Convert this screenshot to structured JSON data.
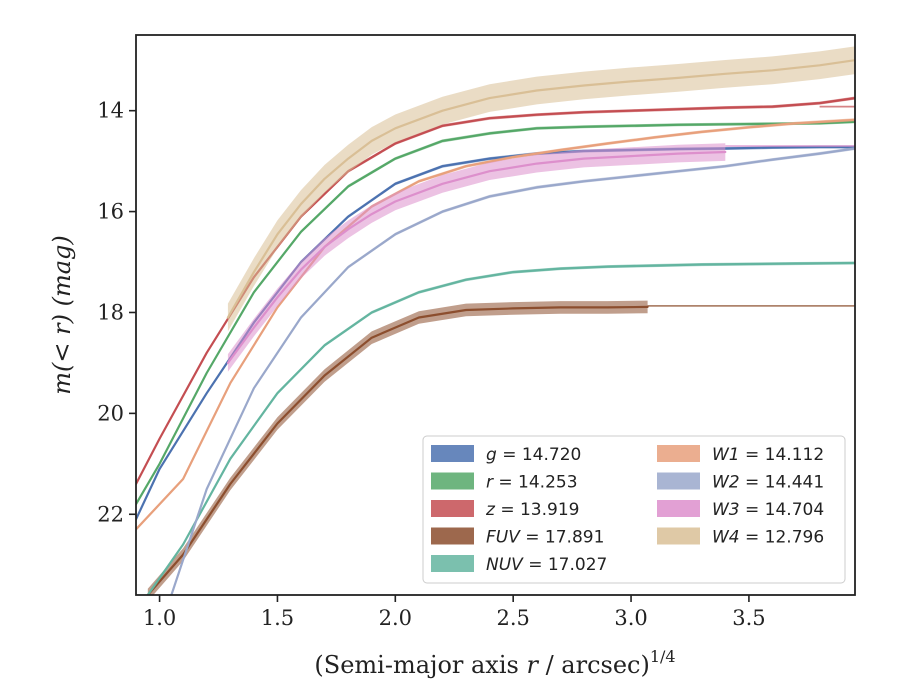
{
  "chart_data": {
    "type": "line",
    "title": "",
    "xlabel_main": "(Semi-major axis ",
    "xlabel_var": "r",
    "xlabel_unit": " / arcsec)",
    "xlabel_exp": "1/4",
    "ylabel": "m(< r) (mag)",
    "xlim": [
      0.9,
      3.95
    ],
    "ylim": [
      23.6,
      12.5
    ],
    "y_inverted": true,
    "xticks": [
      1.0,
      1.5,
      2.0,
      2.5,
      3.0,
      3.5
    ],
    "xtick_labels": [
      "1.0",
      "1.5",
      "2.0",
      "2.5",
      "3.0",
      "3.5"
    ],
    "yticks": [
      14,
      16,
      18,
      20,
      22
    ],
    "ytick_labels": [
      "14",
      "16",
      "18",
      "20",
      "22"
    ],
    "grid": false,
    "legend": "lower-right, two columns",
    "series": [
      {
        "name": "g = 14.720",
        "band": "g",
        "total_mag": "14.720",
        "color": "#4c72b0",
        "band_width": 0.06,
        "x": [
          0.9,
          1.0,
          1.2,
          1.4,
          1.6,
          1.8,
          2.0,
          2.2,
          2.4,
          2.6,
          2.8,
          3.0,
          3.2,
          3.4,
          3.6,
          3.8,
          3.95
        ],
        "y": [
          22.1,
          21.1,
          19.6,
          18.2,
          17.0,
          16.1,
          15.45,
          15.1,
          14.95,
          14.85,
          14.8,
          14.78,
          14.76,
          14.75,
          14.73,
          14.72,
          14.72
        ],
        "extension": null
      },
      {
        "name": "r = 14.253",
        "band": "r",
        "total_mag": "14.253",
        "color": "#55a868",
        "band_width": 0.06,
        "x": [
          0.9,
          1.0,
          1.2,
          1.4,
          1.6,
          1.8,
          2.0,
          2.2,
          2.4,
          2.6,
          2.8,
          3.0,
          3.2,
          3.4,
          3.6,
          3.8,
          3.95
        ],
        "y": [
          21.8,
          21.0,
          19.2,
          17.6,
          16.4,
          15.5,
          14.95,
          14.6,
          14.45,
          14.35,
          14.32,
          14.3,
          14.28,
          14.27,
          14.26,
          14.25,
          14.22
        ],
        "extension": null
      },
      {
        "name": "z = 13.919",
        "band": "z",
        "total_mag": "13.919",
        "color": "#c44e52",
        "band_width": 0.06,
        "x": [
          0.9,
          1.0,
          1.2,
          1.4,
          1.6,
          1.8,
          2.0,
          2.2,
          2.4,
          2.6,
          2.8,
          3.0,
          3.2,
          3.4,
          3.6,
          3.8,
          3.95
        ],
        "y": [
          21.4,
          20.5,
          18.8,
          17.3,
          16.1,
          15.2,
          14.65,
          14.3,
          14.15,
          14.08,
          14.03,
          14.0,
          13.97,
          13.94,
          13.92,
          13.85,
          13.75
        ],
        "extension": {
          "x": [
            3.8,
            3.95
          ],
          "y": [
            13.92,
            13.92
          ]
        }
      },
      {
        "name": "FUV = 17.891",
        "band": "FUV",
        "total_mag": "17.891",
        "color": "#8c4e2e",
        "band_width": 0.25,
        "x": [
          0.95,
          1.1,
          1.3,
          1.5,
          1.7,
          1.9,
          2.1,
          2.3,
          2.5,
          2.7,
          2.9,
          3.07
        ],
        "y": [
          23.6,
          22.8,
          21.4,
          20.2,
          19.25,
          18.5,
          18.1,
          17.95,
          17.92,
          17.9,
          17.9,
          17.89
        ],
        "extension": {
          "x": [
            3.07,
            3.95
          ],
          "y": [
            17.87,
            17.87
          ]
        }
      },
      {
        "name": "NUV = 17.027",
        "band": "NUV",
        "total_mag": "17.027",
        "color": "#64b5a0",
        "band_width": 0.06,
        "x": [
          0.95,
          1.1,
          1.3,
          1.5,
          1.7,
          1.9,
          2.1,
          2.3,
          2.5,
          2.7,
          2.9,
          3.1,
          3.3,
          3.5,
          3.7,
          3.95
        ],
        "y": [
          23.6,
          22.6,
          20.9,
          19.6,
          18.65,
          18.0,
          17.6,
          17.35,
          17.2,
          17.13,
          17.09,
          17.07,
          17.05,
          17.04,
          17.03,
          17.02
        ],
        "extension": null
      },
      {
        "name": "W1 = 14.112",
        "band": "W1",
        "total_mag": "14.112",
        "color": "#e8a07c",
        "band_width": 0.06,
        "x": [
          0.9,
          1.1,
          1.3,
          1.5,
          1.7,
          1.9,
          2.1,
          2.3,
          2.5,
          2.7,
          2.9,
          3.1,
          3.3,
          3.5,
          3.7,
          3.95
        ],
        "y": [
          22.3,
          21.3,
          19.4,
          17.9,
          16.7,
          15.9,
          15.4,
          15.1,
          14.92,
          14.78,
          14.65,
          14.53,
          14.42,
          14.33,
          14.25,
          14.18
        ],
        "extension": null
      },
      {
        "name": "W2 = 14.441",
        "band": "W2",
        "total_mag": "14.441",
        "color": "#9aa8cb",
        "band_width": 0.06,
        "x": [
          1.05,
          1.2,
          1.4,
          1.6,
          1.8,
          2.0,
          2.2,
          2.4,
          2.6,
          2.8,
          3.0,
          3.2,
          3.4,
          3.6,
          3.8,
          3.95
        ],
        "y": [
          23.6,
          21.5,
          19.5,
          18.1,
          17.1,
          16.45,
          16.0,
          15.7,
          15.52,
          15.4,
          15.3,
          15.2,
          15.1,
          14.97,
          14.85,
          14.75
        ],
        "extension": null
      },
      {
        "name": "W3 = 14.704",
        "band": "W3",
        "total_mag": "14.704",
        "color": "#dd8fcc",
        "band_width": 0.35,
        "x": [
          1.29,
          1.4,
          1.5,
          1.6,
          1.7,
          1.8,
          1.9,
          2.0,
          2.2,
          2.4,
          2.6,
          2.8,
          3.0,
          3.2,
          3.4
        ],
        "y": [
          19.0,
          18.3,
          17.7,
          17.15,
          16.7,
          16.35,
          16.05,
          15.8,
          15.45,
          15.2,
          15.05,
          14.95,
          14.9,
          14.85,
          14.82
        ],
        "extension": {
          "x": [
            3.4,
            3.95
          ],
          "y": [
            14.7,
            14.7
          ]
        }
      },
      {
        "name": "W4 = 12.796",
        "band": "W4",
        "total_mag": "12.796",
        "color": "#d9bf96",
        "band_width": 0.55,
        "x": [
          1.29,
          1.4,
          1.5,
          1.6,
          1.7,
          1.8,
          1.9,
          2.0,
          2.2,
          2.4,
          2.6,
          2.8,
          3.0,
          3.2,
          3.4,
          3.6,
          3.8,
          3.95
        ],
        "y": [
          18.1,
          17.2,
          16.45,
          15.85,
          15.35,
          14.95,
          14.6,
          14.35,
          14.0,
          13.75,
          13.6,
          13.5,
          13.42,
          13.35,
          13.27,
          13.2,
          13.1,
          13.0
        ],
        "extension": null
      }
    ]
  }
}
